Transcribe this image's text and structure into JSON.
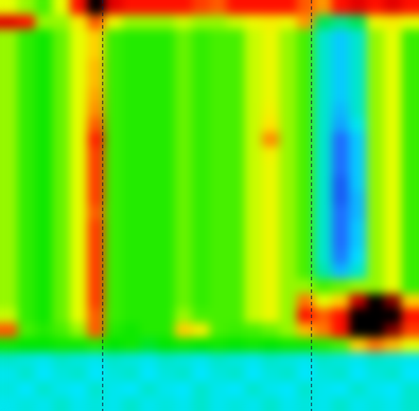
{
  "chart_data": {
    "type": "heatmap",
    "tick_labels": false,
    "xlim": [
      0,
      24
    ],
    "ylim": [
      0,
      28
    ],
    "zlim": [
      0,
      100
    ],
    "vlines": [
      5.88,
      17.84
    ],
    "values": [
      [
        60,
        55,
        50,
        60,
        85,
        100,
        88,
        85,
        85,
        85,
        85,
        82,
        80,
        85,
        85,
        85,
        85,
        80,
        75,
        85,
        88,
        85,
        88,
        85
      ],
      [
        88,
        85,
        55,
        55,
        65,
        80,
        62,
        55,
        55,
        55,
        58,
        55,
        55,
        58,
        62,
        65,
        62,
        75,
        35,
        32,
        35,
        62,
        65,
        60
      ],
      [
        55,
        47,
        42,
        52,
        60,
        70,
        48,
        45,
        45,
        45,
        52,
        47,
        50,
        50,
        58,
        62,
        55,
        50,
        28,
        22,
        28,
        55,
        60,
        48
      ],
      [
        55,
        47,
        42,
        52,
        60,
        70,
        48,
        45,
        45,
        45,
        52,
        47,
        50,
        50,
        58,
        62,
        55,
        50,
        28,
        22,
        28,
        55,
        60,
        48
      ],
      [
        55,
        47,
        42,
        52,
        60,
        72,
        48,
        45,
        45,
        45,
        52,
        47,
        50,
        50,
        58,
        62,
        55,
        50,
        28,
        22,
        28,
        55,
        60,
        48
      ],
      [
        55,
        47,
        42,
        52,
        60,
        72,
        48,
        45,
        45,
        45,
        52,
        47,
        50,
        50,
        58,
        62,
        55,
        50,
        28,
        22,
        28,
        55,
        60,
        48
      ],
      [
        55,
        47,
        42,
        52,
        60,
        74,
        48,
        45,
        45,
        45,
        52,
        47,
        50,
        50,
        58,
        62,
        55,
        50,
        28,
        22,
        28,
        55,
        60,
        48
      ],
      [
        55,
        47,
        42,
        52,
        60,
        76,
        48,
        45,
        45,
        45,
        52,
        47,
        50,
        50,
        58,
        64,
        55,
        50,
        28,
        20,
        28,
        55,
        60,
        48
      ],
      [
        55,
        47,
        42,
        52,
        60,
        80,
        48,
        45,
        45,
        45,
        52,
        47,
        50,
        50,
        58,
        68,
        55,
        50,
        28,
        18,
        26,
        55,
        60,
        48
      ],
      [
        55,
        47,
        42,
        52,
        60,
        84,
        48,
        45,
        45,
        45,
        52,
        47,
        50,
        50,
        58,
        76,
        55,
        50,
        28,
        12,
        22,
        55,
        60,
        48
      ],
      [
        55,
        47,
        42,
        52,
        60,
        82,
        48,
        45,
        45,
        45,
        52,
        47,
        50,
        50,
        58,
        64,
        55,
        50,
        28,
        12,
        22,
        55,
        60,
        48
      ],
      [
        55,
        47,
        42,
        52,
        60,
        82,
        48,
        45,
        45,
        45,
        52,
        47,
        50,
        50,
        58,
        62,
        55,
        50,
        28,
        12,
        22,
        55,
        60,
        48
      ],
      [
        55,
        47,
        42,
        52,
        60,
        82,
        48,
        45,
        45,
        45,
        52,
        47,
        50,
        50,
        58,
        62,
        55,
        50,
        28,
        10,
        22,
        55,
        60,
        48
      ],
      [
        55,
        47,
        42,
        52,
        60,
        82,
        48,
        45,
        45,
        45,
        52,
        47,
        50,
        50,
        58,
        62,
        55,
        50,
        28,
        10,
        20,
        55,
        60,
        48
      ],
      [
        55,
        47,
        42,
        52,
        60,
        80,
        48,
        45,
        45,
        45,
        52,
        47,
        50,
        50,
        58,
        62,
        55,
        50,
        28,
        12,
        20,
        55,
        60,
        48
      ],
      [
        55,
        47,
        42,
        52,
        60,
        82,
        48,
        45,
        45,
        45,
        52,
        47,
        50,
        50,
        58,
        62,
        55,
        50,
        28,
        12,
        22,
        55,
        60,
        48
      ],
      [
        55,
        47,
        42,
        52,
        60,
        82,
        48,
        45,
        45,
        45,
        52,
        47,
        50,
        50,
        58,
        62,
        55,
        50,
        28,
        12,
        22,
        55,
        60,
        48
      ],
      [
        55,
        47,
        42,
        52,
        60,
        82,
        48,
        45,
        45,
        45,
        52,
        47,
        50,
        50,
        58,
        62,
        55,
        50,
        28,
        14,
        24,
        55,
        60,
        48
      ],
      [
        55,
        47,
        42,
        52,
        60,
        82,
        48,
        45,
        45,
        45,
        52,
        47,
        50,
        50,
        58,
        62,
        55,
        50,
        30,
        20,
        28,
        55,
        60,
        48
      ],
      [
        55,
        47,
        42,
        52,
        60,
        82,
        48,
        45,
        45,
        45,
        52,
        47,
        50,
        50,
        58,
        62,
        55,
        55,
        50,
        52,
        55,
        55,
        60,
        48
      ],
      [
        55,
        47,
        42,
        52,
        60,
        82,
        48,
        45,
        45,
        45,
        52,
        47,
        50,
        50,
        58,
        62,
        55,
        78,
        60,
        70,
        90,
        100,
        95,
        70
      ],
      [
        58,
        47,
        42,
        52,
        60,
        80,
        48,
        45,
        45,
        45,
        55,
        50,
        50,
        50,
        58,
        62,
        55,
        85,
        80,
        85,
        100,
        100,
        100,
        85
      ],
      [
        80,
        50,
        45,
        50,
        55,
        80,
        45,
        42,
        45,
        45,
        70,
        65,
        50,
        48,
        50,
        52,
        55,
        72,
        78,
        85,
        100,
        100,
        95,
        82
      ],
      [
        42,
        40,
        40,
        42,
        42,
        45,
        40,
        42,
        38,
        40,
        42,
        40,
        42,
        40,
        42,
        40,
        42,
        42,
        45,
        50,
        70,
        78,
        72,
        60
      ],
      [
        28,
        27,
        26,
        28,
        27,
        26,
        28,
        27,
        26,
        28,
        27,
        26,
        28,
        27,
        26,
        28,
        27,
        26,
        28,
        27,
        26,
        28,
        27,
        26
      ],
      [
        26,
        28,
        25,
        27,
        28,
        25,
        27,
        28,
        25,
        27,
        28,
        25,
        27,
        28,
        25,
        27,
        28,
        25,
        27,
        28,
        25,
        27,
        28,
        25
      ],
      [
        27,
        25,
        28,
        26,
        25,
        28,
        26,
        25,
        28,
        26,
        25,
        28,
        26,
        25,
        28,
        26,
        25,
        28,
        26,
        25,
        28,
        26,
        25,
        28
      ],
      [
        26,
        27,
        26,
        28,
        26,
        27,
        26,
        28,
        26,
        27,
        26,
        28,
        26,
        27,
        26,
        28,
        26,
        27,
        26,
        28,
        26,
        27,
        26,
        28
      ]
    ]
  }
}
